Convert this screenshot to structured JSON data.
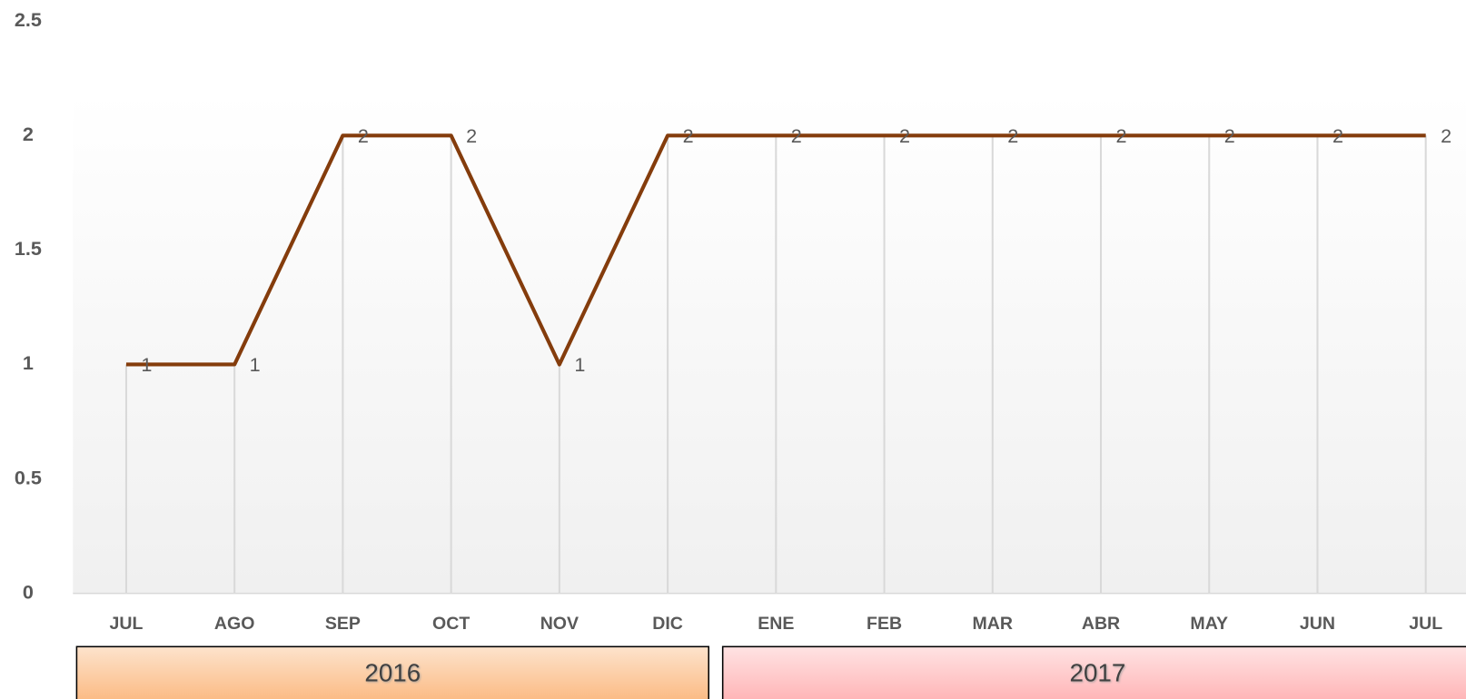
{
  "chart_data": {
    "type": "line",
    "categories": [
      "JUL",
      "AGO",
      "SEP",
      "OCT",
      "NOV",
      "DIC",
      "ENE",
      "FEB",
      "MAR",
      "ABR",
      "MAY",
      "JUN",
      "JUL"
    ],
    "values": [
      1,
      1,
      2,
      2,
      1,
      2,
      2,
      2,
      2,
      2,
      2,
      2,
      2
    ],
    "color": "#843c0c",
    "ylim": [
      0,
      2.5
    ],
    "yticks": [
      0,
      0.5,
      1,
      1.5,
      2,
      2.5
    ],
    "drop_lines": true,
    "year_groups": [
      "2016",
      "2017"
    ]
  }
}
